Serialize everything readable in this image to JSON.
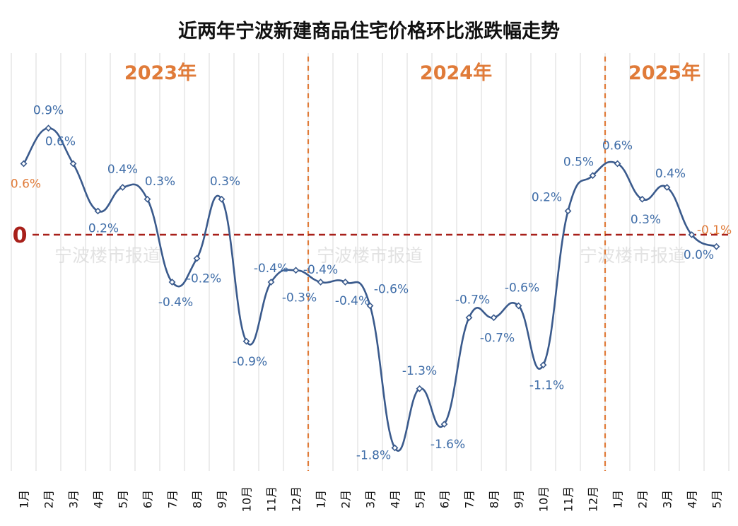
{
  "chart_data": {
    "type": "line",
    "title": "近两年宁波新建商品住宅价格环比涨跌幅走势",
    "categories": [
      "1月",
      "2月",
      "3月",
      "4月",
      "5月",
      "6月",
      "7月",
      "8月",
      "9月",
      "10月",
      "11月",
      "12月",
      "1月",
      "2月",
      "3月",
      "4月",
      "5月",
      "6月",
      "7月",
      "8月",
      "9月",
      "10月",
      "11月",
      "12月",
      "1月",
      "2月",
      "3月",
      "4月",
      "5月"
    ],
    "years": [
      {
        "label": "2023年",
        "start_index": 0,
        "end_index": 11
      },
      {
        "label": "2024年",
        "start_index": 12,
        "end_index": 23
      },
      {
        "label": "2025年",
        "start_index": 24,
        "end_index": 28
      }
    ],
    "series": [
      {
        "values": [
          0.6,
          0.9,
          0.6,
          0.2,
          0.4,
          0.3,
          -0.4,
          -0.2,
          0.3,
          -0.9,
          -0.4,
          -0.3,
          -0.4,
          -0.4,
          -0.6,
          -1.8,
          -1.3,
          -1.6,
          -0.7,
          -0.7,
          -0.6,
          -1.1,
          0.2,
          0.5,
          0.6,
          0.3,
          0.4,
          0.0,
          -0.1
        ],
        "value_labels": [
          "0.6%",
          "0.9%",
          "0.6%",
          "0.2%",
          "0.4%",
          "0.3%",
          "-0.4%",
          "-0.2%",
          "0.3%",
          "-0.9%",
          "-0.4%",
          "-0.3%",
          "-0.4%",
          "-0.4%",
          "-0.6%",
          "-1.8%",
          "-1.3%",
          "-1.6%",
          "-0.7%",
          "-0.7%",
          "-0.6%",
          "-1.1%",
          "0.2%",
          "0.5%",
          "0.6%",
          "0.3%",
          "0.4%",
          "0.0%",
          "-0.1%"
        ]
      }
    ],
    "zero_line_label": "0",
    "ylim": [
      -2.0,
      1.3
    ],
    "grid": "vertical",
    "watermark": "宁波楼市报道",
    "colors": {
      "line": "#3a5a8c",
      "data_label": "#3f6da8",
      "highlight_label": "#e07b39",
      "year_label": "#e07b39",
      "year_divider": "#e07b39",
      "zero_line": "#a8201a",
      "grid": "#d9d9d9",
      "marker_fill": "#ffffff"
    }
  }
}
